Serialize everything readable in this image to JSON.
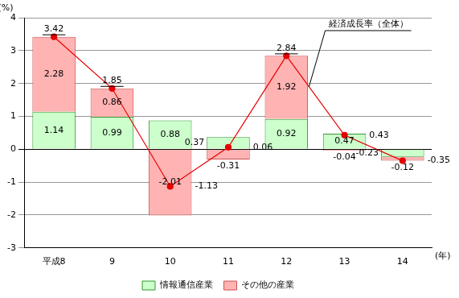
{
  "chart_data": {
    "type": "bar",
    "stacked": true,
    "categories": [
      "平成8",
      "9",
      "10",
      "11",
      "12",
      "13",
      "14"
    ],
    "x_label": "(年)",
    "y_label": "(%)",
    "ylim": [
      -3,
      4
    ],
    "yticks": [
      -3,
      -2,
      -1,
      0,
      1,
      2,
      3,
      4
    ],
    "grid": true,
    "legend": "bottom",
    "data_labels": true,
    "series": [
      {
        "name": "情報通信産業",
        "color": "#ccffcc",
        "values": [
          1.14,
          0.99,
          0.88,
          0.37,
          0.92,
          0.47,
          -0.23
        ]
      },
      {
        "name": "その他の産業",
        "color": "#ffb3b3",
        "values": [
          2.28,
          0.86,
          -2.01,
          -0.31,
          1.92,
          -0.04,
          -0.12
        ]
      },
      {
        "name": "経済成長率（全体）",
        "type": "line",
        "color": "#e60000",
        "marker": "circle",
        "values": [
          3.42,
          1.85,
          -1.13,
          0.06,
          2.84,
          0.43,
          -0.35
        ]
      }
    ]
  }
}
